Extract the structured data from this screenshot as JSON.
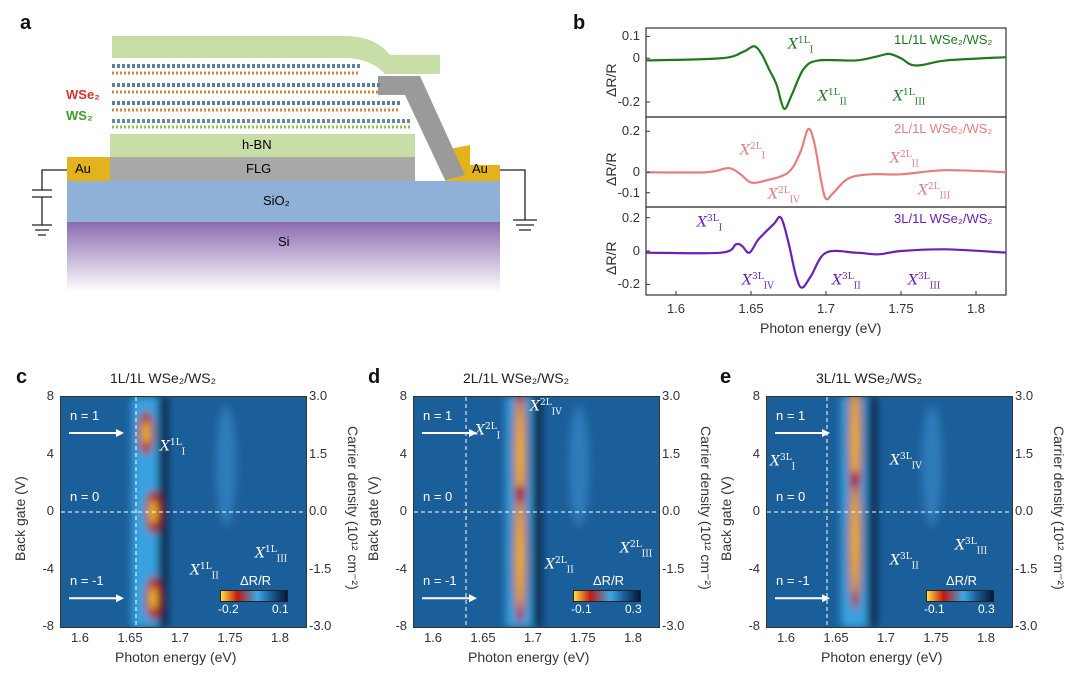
{
  "panel_labels": {
    "a": "a",
    "b": "b",
    "c": "c",
    "d": "d",
    "e": "e"
  },
  "schematic": {
    "wse2": "WSe₂",
    "ws2": "WS₂",
    "hbn": "h-BN",
    "flg": "FLG",
    "au_left": "Au",
    "au_right": "Au",
    "sio2": "SiO₂",
    "si": "Si"
  },
  "colors": {
    "green": "#1f7a1f",
    "pink": "#e57f7f",
    "purple": "#6a1fb8",
    "heat_base": "#1b5f9a"
  },
  "chart_data": [
    {
      "type": "line",
      "panel": "b",
      "xlabel": "Photon energy (eV)",
      "ylabel": "ΔR/R",
      "xlim": [
        1.58,
        1.82
      ],
      "xticks": [
        "1.6",
        "1.65",
        "1.7",
        "1.75",
        "1.8"
      ],
      "subplots": [
        {
          "name": "1L/1L WSe2/WS2",
          "legend": "1L/1L  WSe₂/WS₂",
          "color": "#1f7a1f",
          "ylim": [
            -0.25,
            0.12
          ],
          "yticks": [
            0.1,
            0,
            -0.2
          ],
          "ytick_labels": [
            "0.1",
            "0",
            "-0.2"
          ],
          "x": [
            1.58,
            1.63,
            1.645,
            1.652,
            1.657,
            1.662,
            1.667,
            1.672,
            1.677,
            1.685,
            1.695,
            1.72,
            1.735,
            1.742,
            1.75,
            1.757,
            1.765,
            1.78,
            1.82
          ],
          "y": [
            -0.01,
            0,
            0.03,
            0.055,
            0.02,
            -0.05,
            -0.12,
            -0.23,
            -0.17,
            -0.05,
            -0.01,
            -0.01,
            0.01,
            0.02,
            0,
            -0.03,
            -0.03,
            -0.01,
            0.005
          ],
          "annotations": [
            {
              "base": "X",
              "sub": "I",
              "sup": "1L"
            },
            {
              "base": "X",
              "sub": "II",
              "sup": "1L"
            },
            {
              "base": "X",
              "sub": "III",
              "sup": "1L"
            }
          ]
        },
        {
          "name": "2L/1L WSe2/WS2",
          "legend": "2L/1L  WSe₂/WS₂",
          "color": "#e57f7f",
          "ylim": [
            -0.15,
            0.25
          ],
          "yticks": [
            0.2,
            0,
            -0.1
          ],
          "ytick_labels": [
            "0.2",
            "0",
            "-0.1"
          ],
          "x": [
            1.58,
            1.62,
            1.635,
            1.643,
            1.65,
            1.66,
            1.675,
            1.683,
            1.688,
            1.692,
            1.697,
            1.7,
            1.705,
            1.715,
            1.73,
            1.75,
            1.78,
            1.82
          ],
          "y": [
            0,
            0,
            0.02,
            -0.01,
            -0.05,
            -0.04,
            0,
            0.1,
            0.21,
            0.15,
            -0.05,
            -0.13,
            -0.1,
            -0.03,
            -0.01,
            -0.01,
            0.01,
            0
          ],
          "annotations": [
            {
              "base": "X",
              "sub": "I",
              "sup": "2L"
            },
            {
              "base": "X",
              "sub": "IV",
              "sup": "2L"
            },
            {
              "base": "X",
              "sub": "II",
              "sup": "2L"
            },
            {
              "base": "X",
              "sub": "III",
              "sup": "2L"
            }
          ]
        },
        {
          "name": "3L/1L WSe2/WS2",
          "legend": "3L/1L  WSe₂/WS₂",
          "color": "#6a1fb8",
          "ylim": [
            -0.24,
            0.24
          ],
          "yticks": [
            0.2,
            0,
            -0.2
          ],
          "ytick_labels": [
            "0.2",
            "0",
            "-0.2"
          ],
          "x": [
            1.58,
            1.63,
            1.64,
            1.644,
            1.649,
            1.655,
            1.665,
            1.67,
            1.675,
            1.68,
            1.684,
            1.69,
            1.7,
            1.72,
            1.735,
            1.75,
            1.78,
            1.82
          ],
          "y": [
            -0.01,
            -0.01,
            0.04,
            0.03,
            -0.01,
            0.07,
            0.16,
            0.2,
            0.05,
            -0.15,
            -0.22,
            -0.15,
            -0.01,
            -0.01,
            -0.02,
            0,
            0.01,
            -0.01
          ],
          "annotations": [
            {
              "base": "X",
              "sub": "I",
              "sup": "3L"
            },
            {
              "base": "X",
              "sub": "IV",
              "sup": "3L"
            },
            {
              "base": "X",
              "sub": "II",
              "sup": "3L"
            },
            {
              "base": "X",
              "sub": "III",
              "sup": "3L"
            }
          ]
        }
      ]
    },
    {
      "type": "heatmap",
      "panel": "c",
      "title": "1L/1L  WSe₂/WS₂",
      "xlabel": "Photon energy (eV)",
      "ylabel": "Back gate (V)",
      "ylabel_right": "Carrier density (10¹² cm⁻²)",
      "xlim": [
        1.58,
        1.825
      ],
      "ylim": [
        -8,
        8
      ],
      "xticks": [
        "1.6",
        "1.65",
        "1.7",
        "1.75",
        "1.8"
      ],
      "yticks": [
        "8",
        "4",
        "0",
        "-4",
        "-8"
      ],
      "yticks_right": [
        "3.0",
        "1.5",
        "0.0",
        "-1.5",
        "-3.0"
      ],
      "colorbar": {
        "label": "ΔR/R",
        "min": "-0.2",
        "max": "0.1"
      },
      "dashed_x": 1.655,
      "n_labels": [
        "n = 1",
        "n = 0",
        "n = -1"
      ],
      "hot_spots": [
        {
          "e": 1.665,
          "v": 5.5
        },
        {
          "e": 1.672,
          "v": 0
        },
        {
          "e": 1.672,
          "v": -6
        }
      ],
      "annotations": [
        {
          "base": "X",
          "sub": "I",
          "sup": "1L"
        },
        {
          "base": "X",
          "sub": "II",
          "sup": "1L"
        },
        {
          "base": "X",
          "sub": "III",
          "sup": "1L"
        }
      ]
    },
    {
      "type": "heatmap",
      "panel": "d",
      "title": "2L/1L  WSe₂/WS₂",
      "xlabel": "Photon energy (eV)",
      "ylabel": "Back gate (V)",
      "ylabel_right": "Carrier density (10¹² cm⁻²)",
      "xlim": [
        1.58,
        1.825
      ],
      "ylim": [
        -8,
        8
      ],
      "xticks": [
        "1.6",
        "1.65",
        "1.7",
        "1.75",
        "1.8"
      ],
      "yticks": [
        "8",
        "4",
        "0",
        "-4",
        "-8"
      ],
      "yticks_right": [
        "3.0",
        "1.5",
        "0.0",
        "-1.5",
        "-3.0"
      ],
      "colorbar": {
        "label": "ΔR/R",
        "min": "-0.1",
        "max": "0.3"
      },
      "dashed_x": 1.632,
      "n_labels": [
        "n = 1",
        "n = 0",
        "n = -1"
      ],
      "hot_spots": [
        {
          "e": 1.686,
          "v": 4
        },
        {
          "e": 1.686,
          "v": -3
        }
      ],
      "annotations": [
        {
          "base": "X",
          "sub": "I",
          "sup": "2L"
        },
        {
          "base": "X",
          "sub": "IV",
          "sup": "2L"
        },
        {
          "base": "X",
          "sub": "II",
          "sup": "2L"
        },
        {
          "base": "X",
          "sub": "III",
          "sup": "2L"
        }
      ]
    },
    {
      "type": "heatmap",
      "panel": "e",
      "title": "3L/1L  WSe₂/WS₂",
      "xlabel": "Photon energy (eV)",
      "ylabel": "Back gate (V)",
      "ylabel_right": "Carrier density (10¹² cm⁻²)",
      "xlim": [
        1.58,
        1.825
      ],
      "ylim": [
        -8,
        8
      ],
      "xticks": [
        "1.6",
        "1.65",
        "1.7",
        "1.75",
        "1.8"
      ],
      "yticks": [
        "8",
        "4",
        "0",
        "-4",
        "-8"
      ],
      "yticks_right": [
        "3.0",
        "1.5",
        "0.0",
        "-1.5",
        "-3.0"
      ],
      "colorbar": {
        "label": "ΔR/R",
        "min": "-0.1",
        "max": "0.3"
      },
      "dashed_x": 1.64,
      "n_labels": [
        "n = 1",
        "n = 0",
        "n = -1"
      ],
      "hot_spots": [
        {
          "e": 1.668,
          "v": 5
        },
        {
          "e": 1.668,
          "v": -2
        }
      ],
      "annotations": [
        {
          "base": "X",
          "sub": "I",
          "sup": "3L"
        },
        {
          "base": "X",
          "sub": "IV",
          "sup": "3L"
        },
        {
          "base": "X",
          "sub": "II",
          "sup": "3L"
        },
        {
          "base": "X",
          "sub": "III",
          "sup": "3L"
        }
      ]
    }
  ]
}
